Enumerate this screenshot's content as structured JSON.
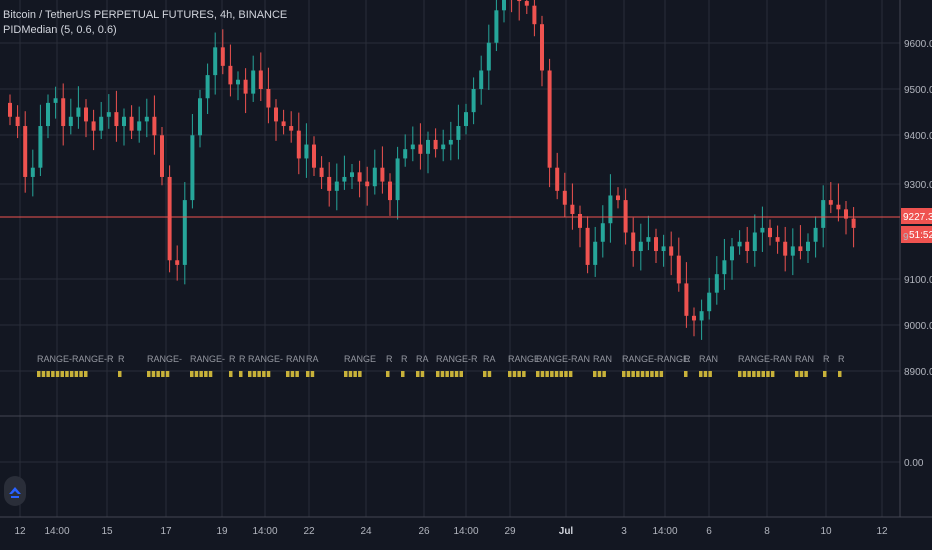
{
  "header": {
    "symbol_title": "Bitcoin / TetherUS PERPETUAL FUTURES, 4h, BINANCE",
    "indicator_label": "PIDMedian (5, 0.6, 0.6)"
  },
  "price_axis": {
    "ticks": [
      "9600.00",
      "9500.00",
      "9400.00",
      "9300.00",
      "9100.00",
      "9000.00",
      "8900.00"
    ],
    "current_price": "9227.30",
    "countdown": "51:52",
    "price_fragment": "9"
  },
  "indicator_axis": {
    "ticks": [
      "0.00"
    ]
  },
  "time_axis": {
    "ticks": [
      "12",
      "14:00",
      "15",
      "17",
      "19",
      "14:00",
      "22",
      "24",
      "26",
      "14:00",
      "29",
      "Jul",
      "3",
      "14:00",
      "6",
      "8",
      "10",
      "12"
    ]
  },
  "range_labels": [
    "RANGE-RANGE-R",
    "R",
    "RANGE-",
    "RANGE-",
    "R",
    "R",
    "RANGE-",
    "RAN",
    "RA",
    "RANGE",
    "R",
    "R",
    "RA",
    "RANGE-R",
    "RA",
    "RANGE",
    "RANGE-RAN",
    "RAN",
    "RANGE-RANGE",
    "R",
    "RAN",
    "RANGE-RAN",
    "RAN",
    "R",
    "R"
  ],
  "colors": {
    "background": "#131722",
    "up_candle": "#26a69a",
    "down_candle": "#ef5350",
    "grid": "#2a2e39",
    "axis_text": "#b2b5be",
    "price_line": "#ef5350",
    "range_marker": "#c8b23a",
    "range_label": "#9598a1"
  },
  "icons": {
    "logo": "tradingview-logo-icon"
  }
}
